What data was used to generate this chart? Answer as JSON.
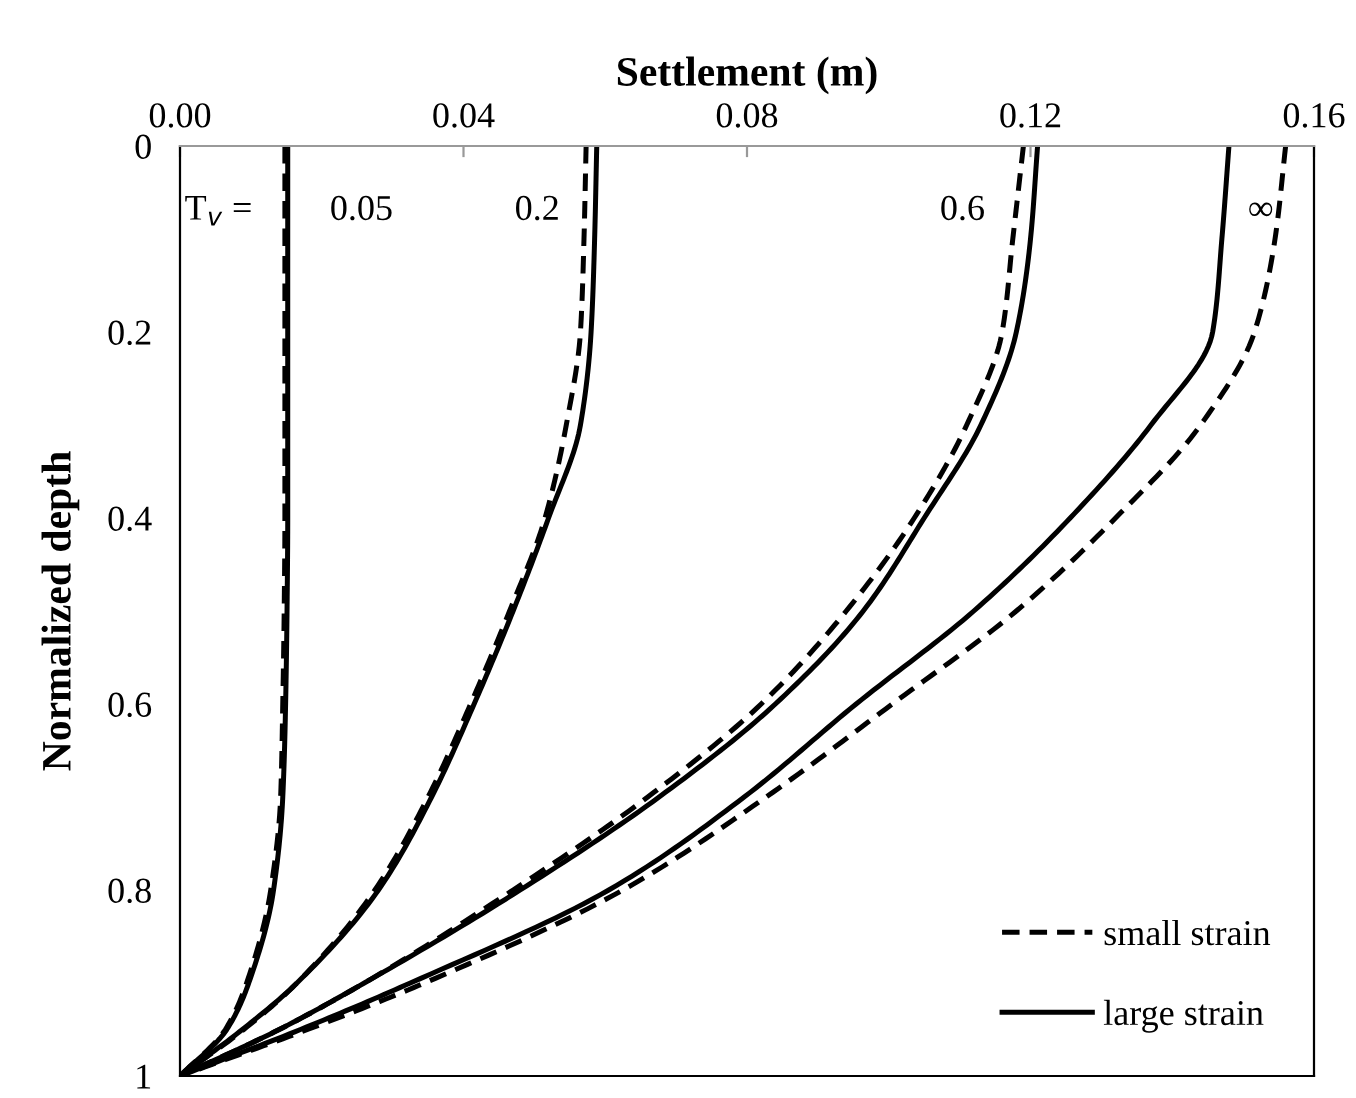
{
  "chart_data": {
    "type": "line",
    "xlabel": "Settlement (m)",
    "ylabel": "Normalized depth",
    "xlim": [
      0,
      0.16
    ],
    "xticks": [
      {
        "value": 0,
        "label": "0.00"
      },
      0.04,
      0.08,
      0.12,
      0.16
    ],
    "ylim": [
      1,
      0
    ],
    "yticks": [
      {
        "value": 0,
        "label": "0"
      },
      0.2,
      0.4,
      0.6,
      0.8,
      {
        "value": 1,
        "label": "1"
      }
    ],
    "grid": false,
    "legend": "bottom right",
    "marker": "none",
    "series": [
      {
        "name": "small strain",
        "color": "#000000",
        "line_style": "dashed",
        "x": [
          0.0148,
          0.0148,
          0.0148,
          0.0148,
          0.0148,
          0.0147,
          0.0145,
          0.0142,
          0.0128,
          0.0094,
          0.0064,
          0
        ],
        "values": [
          0,
          0.1,
          0.2,
          0.3,
          0.4,
          0.5,
          0.6,
          0.7,
          0.8,
          0.9,
          0.95,
          1
        ]
      },
      {
        "name": "large strain",
        "color": "#000000",
        "line_style": "solid",
        "x": [
          0.0152,
          0.0152,
          0.0152,
          0.0152,
          0.0152,
          0.0151,
          0.0149,
          0.0145,
          0.0132,
          0.0097,
          0.0066,
          0
        ],
        "values": [
          0,
          0.1,
          0.2,
          0.3,
          0.4,
          0.5,
          0.6,
          0.7,
          0.8,
          0.9,
          0.95,
          1
        ]
      },
      {
        "color": "#000000",
        "line_style": "dashed",
        "x": [
          0.0573,
          0.057,
          0.0565,
          0.0545,
          0.0515,
          0.0465,
          0.041,
          0.035,
          0.0275,
          0.0165,
          0.009,
          0
        ],
        "values": [
          0,
          0.1,
          0.2,
          0.3,
          0.4,
          0.5,
          0.6,
          0.7,
          0.8,
          0.9,
          0.95,
          1
        ]
      },
      {
        "color": "#000000",
        "line_style": "solid",
        "x": [
          0.0588,
          0.0585,
          0.058,
          0.0565,
          0.052,
          0.047,
          0.0415,
          0.0355,
          0.028,
          0.0165,
          0.0088,
          0
        ],
        "values": [
          0,
          0.1,
          0.2,
          0.3,
          0.4,
          0.5,
          0.6,
          0.7,
          0.8,
          0.9,
          0.95,
          1
        ]
      },
      {
        "color": "#000000",
        "line_style": "dashed",
        "x": [
          0.119,
          0.1175,
          0.116,
          0.111,
          0.1036,
          0.094,
          0.082,
          0.066,
          0.047,
          0.026,
          0.014,
          0
        ],
        "values": [
          0,
          0.1,
          0.2,
          0.3,
          0.4,
          0.5,
          0.6,
          0.7,
          0.8,
          0.9,
          0.95,
          1
        ]
      },
      {
        "color": "#000000",
        "line_style": "solid",
        "x": [
          0.121,
          0.12,
          0.118,
          0.113,
          0.105,
          0.0964,
          0.084,
          0.0676,
          0.048,
          0.026,
          0.014,
          0
        ],
        "values": [
          0,
          0.1,
          0.2,
          0.3,
          0.4,
          0.5,
          0.6,
          0.7,
          0.8,
          0.9,
          0.95,
          1
        ]
      },
      {
        "color": "#000000",
        "line_style": "dashed",
        "x": [
          0.156,
          0.1545,
          0.1516,
          0.144,
          0.132,
          0.118,
          0.1005,
          0.0827,
          0.0625,
          0.0345,
          0.018,
          0
        ],
        "values": [
          0,
          0.1,
          0.2,
          0.3,
          0.4,
          0.5,
          0.6,
          0.7,
          0.8,
          0.9,
          0.95,
          1
        ]
      },
      {
        "color": "#000000",
        "line_style": "solid",
        "x": [
          0.148,
          0.147,
          0.1457,
          0.137,
          0.1256,
          0.112,
          0.0954,
          0.0796,
          0.0605,
          0.0325,
          0.017,
          0
        ],
        "values": [
          0,
          0.1,
          0.2,
          0.3,
          0.4,
          0.5,
          0.6,
          0.7,
          0.8,
          0.9,
          0.95,
          1
        ]
      }
    ],
    "annotations": [
      "T$_{v}$ =",
      "0.05",
      "0.2",
      "0.6",
      "∞"
    ]
  }
}
